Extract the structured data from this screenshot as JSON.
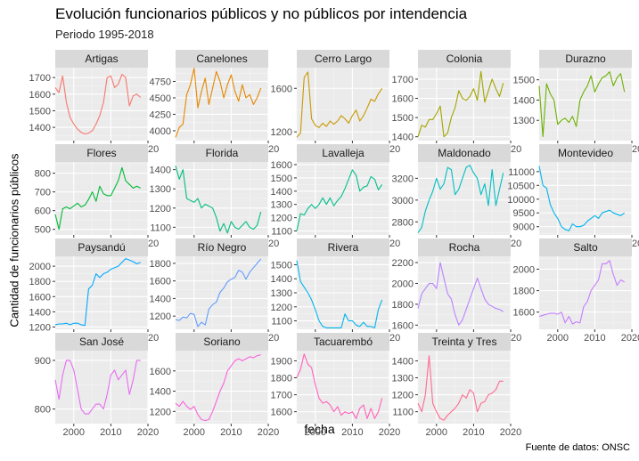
{
  "title": "Evolución funcionarios públicos y no públicos por intendencia",
  "subtitle": "Periodo 1995-2018",
  "caption": "Fuente de datos: ONSC",
  "chart_data": {
    "type": "line",
    "title": "Evolución funcionarios públicos y no públicos por intendencia",
    "subtitle": "Periodo 1995-2018",
    "xlabel": "fecha",
    "ylabel": "Cantidad de funcionarios públicos",
    "x": [
      1995,
      1996,
      1997,
      1998,
      1999,
      2000,
      2001,
      2002,
      2003,
      2004,
      2005,
      2006,
      2007,
      2008,
      2009,
      2010,
      2011,
      2012,
      2013,
      2014,
      2015,
      2016,
      2017,
      2018
    ],
    "xlim": [
      1995,
      2020
    ],
    "x_ticks": [
      2000,
      2010,
      2020
    ],
    "grid": true,
    "legend": "none",
    "facets": [
      {
        "name": "Artigas",
        "color": "#F8766D",
        "yticks": [
          1400,
          1500,
          1600,
          1700
        ],
        "ylim": [
          1320,
          1760
        ],
        "values": [
          1640,
          1610,
          1710,
          1550,
          1460,
          1420,
          1390,
          1370,
          1360,
          1365,
          1380,
          1420,
          1470,
          1550,
          1700,
          1710,
          1640,
          1660,
          1720,
          1700,
          1530,
          1590,
          1600,
          1580
        ]
      },
      {
        "name": "Canelones",
        "color": "#E58700",
        "yticks": [
          4000,
          4250,
          4500,
          4750
        ],
        "ylim": [
          3850,
          4960
        ],
        "values": [
          3900,
          4050,
          4100,
          4550,
          4700,
          4950,
          4350,
          4600,
          4800,
          4400,
          4650,
          4900,
          4750,
          4500,
          4700,
          4850,
          4600,
          4450,
          4700,
          4500,
          4550,
          4400,
          4500,
          4650
        ]
      },
      {
        "name": "Cerro Largo",
        "color": "#C99800",
        "yticks": [
          1200,
          1600
        ],
        "ylim": [
          1120,
          1790
        ],
        "values": [
          1150,
          1190,
          1700,
          1750,
          1320,
          1260,
          1240,
          1280,
          1250,
          1300,
          1270,
          1300,
          1350,
          1320,
          1280,
          1350,
          1400,
          1300,
          1350,
          1420,
          1500,
          1480,
          1550,
          1600
        ]
      },
      {
        "name": "Colonia",
        "color": "#A3A500",
        "yticks": [
          1400,
          1500,
          1600,
          1700
        ],
        "ylim": [
          1380,
          1760
        ],
        "values": [
          1400,
          1460,
          1450,
          1490,
          1490,
          1520,
          1560,
          1400,
          1420,
          1500,
          1550,
          1640,
          1600,
          1590,
          1610,
          1650,
          1590,
          1740,
          1580,
          1640,
          1700,
          1650,
          1610,
          1680
        ]
      },
      {
        "name": "Durazno",
        "color": "#6BB100",
        "yticks": [
          1300,
          1400,
          1500
        ],
        "ylim": [
          1200,
          1560
        ],
        "values": [
          1470,
          1220,
          1480,
          1430,
          1400,
          1280,
          1300,
          1310,
          1290,
          1320,
          1270,
          1400,
          1440,
          1470,
          1520,
          1440,
          1480,
          1510,
          1520,
          1540,
          1470,
          1510,
          1530,
          1440
        ]
      },
      {
        "name": "Flores",
        "color": "#00BA38",
        "yticks": [
          500,
          600,
          700,
          800
        ],
        "ylim": [
          470,
          860
        ],
        "values": [
          580,
          500,
          610,
          620,
          610,
          625,
          640,
          620,
          630,
          660,
          700,
          650,
          730,
          690,
          680,
          680,
          720,
          760,
          830,
          760,
          740,
          720,
          730,
          720
        ]
      },
      {
        "name": "Florida",
        "color": "#00BF7D",
        "yticks": [
          1100,
          1200,
          1300,
          1400
        ],
        "ylim": [
          1060,
          1440
        ],
        "values": [
          1420,
          1350,
          1400,
          1250,
          1240,
          1230,
          1250,
          1200,
          1220,
          1210,
          1200,
          1150,
          1080,
          1120,
          1070,
          1130,
          1100,
          1090,
          1110,
          1130,
          1100,
          1090,
          1110,
          1180
        ]
      },
      {
        "name": "Lavalleja",
        "color": "#00C08B",
        "yticks": [
          1100,
          1200,
          1300,
          1400,
          1500,
          1600
        ],
        "ylim": [
          1070,
          1620
        ],
        "values": [
          1100,
          1230,
          1220,
          1270,
          1300,
          1270,
          1300,
          1350,
          1300,
          1350,
          1290,
          1330,
          1360,
          1420,
          1490,
          1560,
          1520,
          1400,
          1430,
          1440,
          1510,
          1490,
          1410,
          1450
        ]
      },
      {
        "name": "Maldonado",
        "color": "#00BFC4",
        "yticks": [
          2800,
          3000,
          3200
        ],
        "ylim": [
          2680,
          3350
        ],
        "values": [
          2700,
          2750,
          2900,
          3000,
          3080,
          3200,
          3100,
          3150,
          3300,
          3280,
          3050,
          3100,
          3200,
          3300,
          3320,
          3250,
          3200,
          3050,
          3150,
          2950,
          3280,
          2950,
          3100,
          3250
        ]
      },
      {
        "name": "Montevideo",
        "color": "#00B4EF",
        "yticks": [
          9000,
          9500,
          10000,
          10500,
          11000
        ],
        "ylim": [
          8700,
          11350
        ],
        "values": [
          11200,
          10500,
          10400,
          9800,
          9500,
          9300,
          9000,
          8900,
          8850,
          9100,
          9000,
          9000,
          9050,
          9200,
          9300,
          9400,
          9300,
          9500,
          9550,
          9600,
          9500,
          9450,
          9400,
          9500
        ]
      },
      {
        "name": "Paysandú",
        "color": "#00A9FF",
        "yticks": [
          1200,
          1400,
          1600,
          1800,
          2000
        ],
        "ylim": [
          1170,
          2130
        ],
        "values": [
          1230,
          1240,
          1240,
          1250,
          1230,
          1250,
          1250,
          1230,
          1220,
          1700,
          1750,
          1900,
          1850,
          1900,
          1920,
          1960,
          1980,
          2000,
          2050,
          2100,
          2080,
          2060,
          2030,
          2050
        ]
      },
      {
        "name": "Río Negro",
        "color": "#619CFF",
        "yticks": [
          1200,
          1400,
          1600,
          1800
        ],
        "ylim": [
          1050,
          1880
        ],
        "values": [
          1160,
          1150,
          1190,
          1180,
          1230,
          1220,
          1080,
          1130,
          1100,
          1280,
          1330,
          1360,
          1470,
          1520,
          1590,
          1620,
          1640,
          1720,
          1700,
          1620,
          1700,
          1750,
          1800,
          1850
        ]
      },
      {
        "name": "Rivera",
        "color": "#00B4EF",
        "yticks": [
          1100,
          1200,
          1300,
          1400,
          1500
        ],
        "ylim": [
          1040,
          1560
        ],
        "values": [
          1530,
          1380,
          1340,
          1300,
          1250,
          1180,
          1100,
          1060,
          1050,
          1050,
          1050,
          1050,
          1050,
          1150,
          1100,
          1100,
          1070,
          1060,
          1090,
          1060,
          1060,
          1050,
          1180,
          1250
        ]
      },
      {
        "name": "Rocha",
        "color": "#B983FF",
        "yticks": [
          1600,
          1800,
          2000,
          2200
        ],
        "ylim": [
          1560,
          2260
        ],
        "values": [
          1760,
          1900,
          1950,
          2000,
          2000,
          1950,
          2200,
          2050,
          1900,
          1850,
          1700,
          1600,
          1650,
          1750,
          1850,
          1950,
          2050,
          1950,
          1850,
          1800,
          1780,
          1760,
          1750,
          1730
        ]
      },
      {
        "name": "Salto",
        "color": "#C77CFF",
        "yticks": [
          1600,
          1800,
          2000
        ],
        "ylim": [
          1440,
          2120
        ],
        "values": [
          1560,
          1570,
          1580,
          1590,
          1590,
          1580,
          1600,
          1500,
          1560,
          1490,
          1510,
          1500,
          1650,
          1700,
          1800,
          1850,
          1900,
          2050,
          2050,
          2080,
          1950,
          1850,
          1900,
          1880
        ]
      },
      {
        "name": "San José",
        "color": "#E76BF3",
        "yticks": [
          800,
          900
        ],
        "ylim": [
          770,
          920
        ],
        "values": [
          860,
          820,
          870,
          900,
          900,
          880,
          840,
          800,
          790,
          790,
          800,
          810,
          810,
          800,
          830,
          870,
          880,
          860,
          870,
          880,
          830,
          860,
          900,
          900
        ]
      },
      {
        "name": "Soriano",
        "color": "#FA62DB",
        "yticks": [
          1200,
          1400,
          1600
        ],
        "ylim": [
          1080,
          1800
        ],
        "values": [
          1280,
          1250,
          1300,
          1250,
          1220,
          1250,
          1170,
          1120,
          1110,
          1120,
          1200,
          1300,
          1400,
          1480,
          1600,
          1650,
          1700,
          1720,
          1700,
          1720,
          1740,
          1730,
          1750,
          1760
        ]
      },
      {
        "name": "Tacuarembó",
        "color": "#FF62BC",
        "yticks": [
          1600,
          1700,
          1800,
          1900
        ],
        "ylim": [
          1530,
          1960
        ],
        "values": [
          1800,
          1850,
          1940,
          1880,
          1860,
          1760,
          1680,
          1650,
          1660,
          1640,
          1600,
          1630,
          1580,
          1600,
          1590,
          1600,
          1560,
          1620,
          1640,
          1560,
          1620,
          1560,
          1600,
          1680
        ]
      },
      {
        "name": "Treinta y Tres",
        "color": "#FF6C91",
        "yticks": [
          1100,
          1200,
          1300,
          1400
        ],
        "ylim": [
          1030,
          1460
        ],
        "values": [
          1150,
          1100,
          1200,
          1430,
          1150,
          1100,
          1060,
          1050,
          1080,
          1100,
          1120,
          1150,
          1200,
          1180,
          1230,
          1210,
          1100,
          1150,
          1160,
          1200,
          1210,
          1230,
          1280,
          1280
        ]
      }
    ]
  }
}
